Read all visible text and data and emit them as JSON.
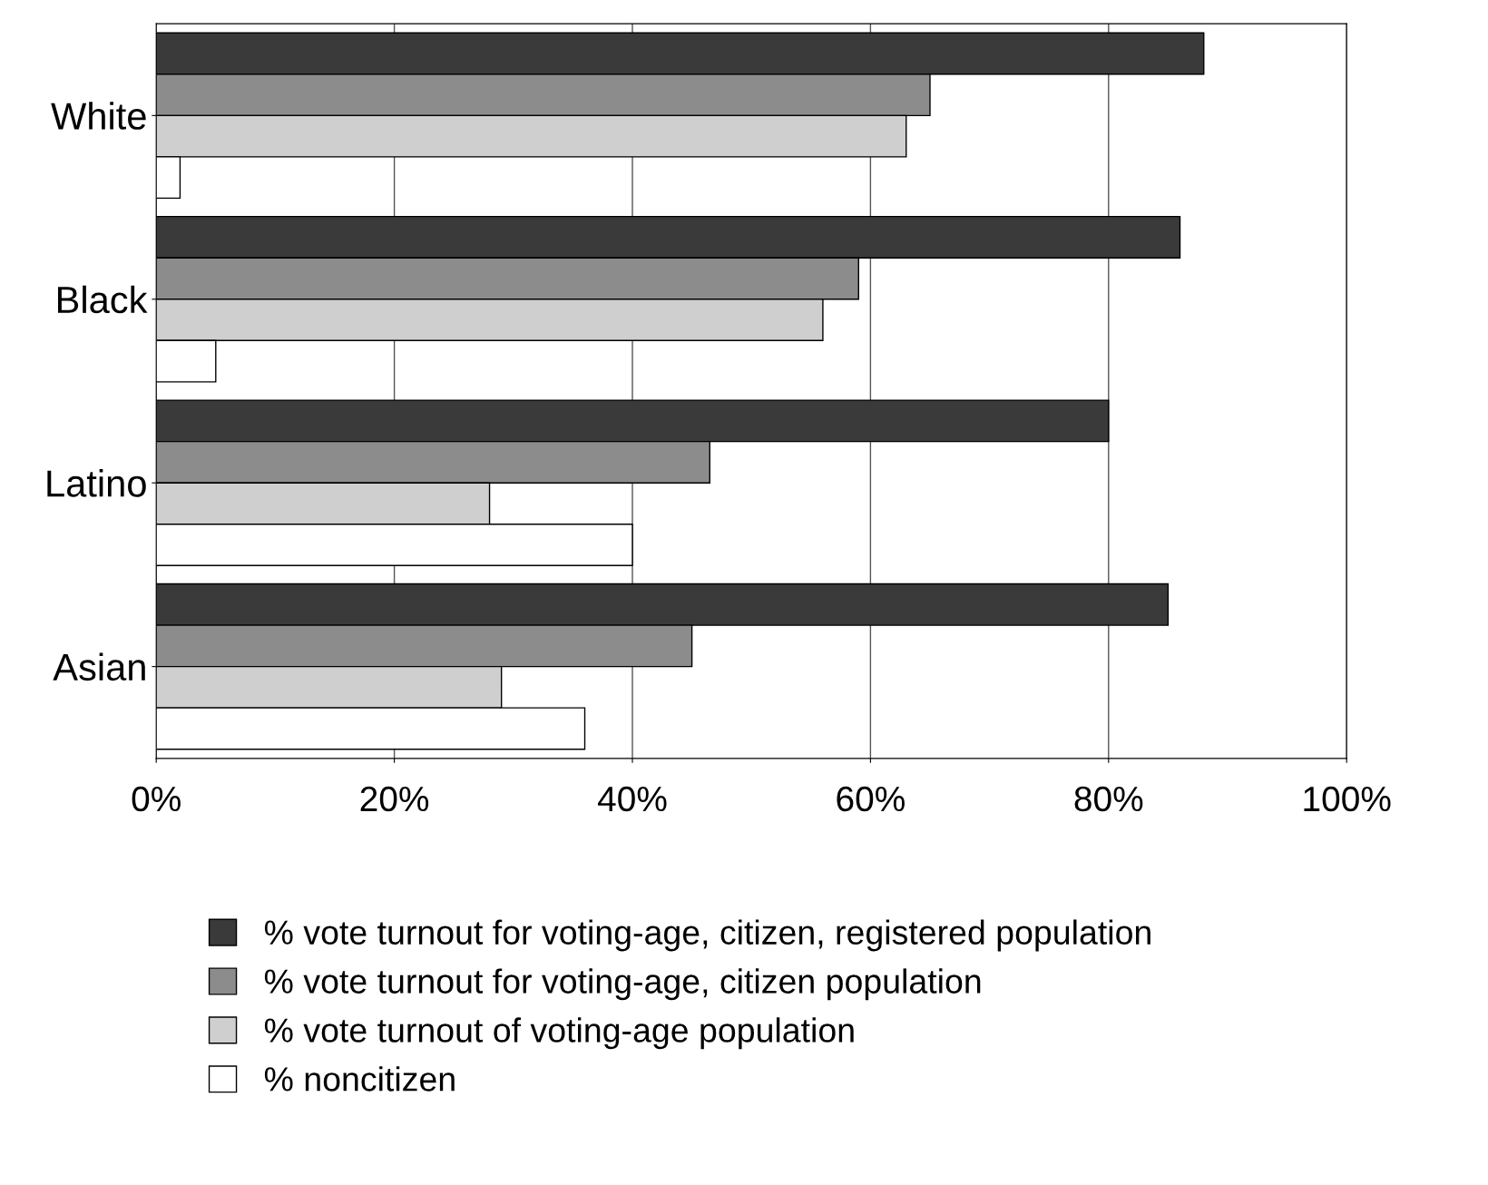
{
  "chart_data": {
    "type": "bar",
    "orientation": "horizontal",
    "categories": [
      "White",
      "Black",
      "Latino",
      "Asian"
    ],
    "series": [
      {
        "name": "% vote turnout for voting-age, citizen, registered population",
        "color": "#3a3a3a",
        "values": [
          88,
          86,
          80,
          85
        ]
      },
      {
        "name": "% vote turnout for voting-age, citizen population",
        "color": "#8c8c8c",
        "values": [
          65,
          59,
          46.5,
          45
        ]
      },
      {
        "name": "% vote turnout of voting-age population",
        "color": "#cfcfcf",
        "values": [
          63,
          56,
          28,
          29
        ]
      },
      {
        "name": "% noncitizen",
        "color": "#ffffff",
        "values": [
          2,
          5,
          40,
          36
        ]
      }
    ],
    "xlim": [
      0,
      100
    ],
    "xticks": [
      {
        "value": 0,
        "label": "0%"
      },
      {
        "value": 20,
        "label": "20%"
      },
      {
        "value": 40,
        "label": "40%"
      },
      {
        "value": 60,
        "label": "60%"
      },
      {
        "value": 80,
        "label": "80%"
      },
      {
        "value": 100,
        "label": "100%"
      }
    ],
    "grid": "x",
    "legend": "bottom"
  }
}
